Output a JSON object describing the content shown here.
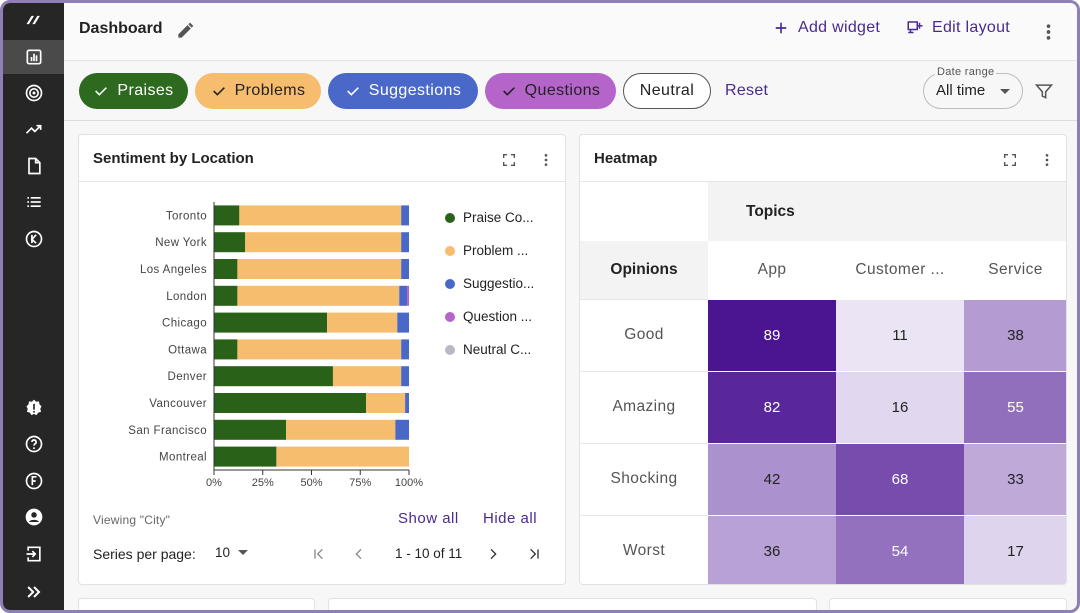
{
  "header": {
    "title": "Dashboard",
    "add_widget_label": "Add widget",
    "edit_layout_label": "Edit layout"
  },
  "sidebar": {
    "items": [
      {
        "icon": "logo-icon"
      },
      {
        "icon": "bar-chart-icon",
        "active": true
      },
      {
        "icon": "target-icon"
      },
      {
        "icon": "trending-up-icon"
      },
      {
        "icon": "document-icon"
      },
      {
        "icon": "list-icon"
      },
      {
        "icon": "k-circle-icon"
      },
      {
        "icon": "alert-badge-icon"
      },
      {
        "icon": "help-icon"
      },
      {
        "icon": "f-circle-icon"
      },
      {
        "icon": "account-icon"
      },
      {
        "icon": "login-icon"
      },
      {
        "icon": "expand-icon"
      }
    ]
  },
  "filters": {
    "chips": [
      {
        "label": "Praises",
        "selected": true,
        "color": "#2d6a1f"
      },
      {
        "label": "Problems",
        "selected": true,
        "color": "#f6bd6e"
      },
      {
        "label": "Suggestions",
        "selected": true,
        "color": "#4a68c8"
      },
      {
        "label": "Questions",
        "selected": true,
        "color": "#b565c9"
      },
      {
        "label": "Neutral",
        "selected": false,
        "color": "#ffffff"
      }
    ],
    "reset_label": "Reset",
    "date_range_label": "Date range",
    "date_range_value": "All time"
  },
  "sentiment_card": {
    "title": "Sentiment by Location",
    "legend": [
      {
        "label": "Praise Co...",
        "color": "#2a6118"
      },
      {
        "label": "Problem ...",
        "color": "#f6bd6e"
      },
      {
        "label": "Suggestio...",
        "color": "#4a68c8"
      },
      {
        "label": "Question ...",
        "color": "#b565c9"
      },
      {
        "label": "Neutral C...",
        "color": "#b9b9c6"
      }
    ],
    "viewing_text": "Viewing \"City\"",
    "show_all_label": "Show all",
    "hide_all_label": "Hide all",
    "series_per_page_label": "Series per page:",
    "series_per_page_value": "10",
    "page_range": "1 - 10 of 11"
  },
  "chart_data": {
    "type": "bar",
    "orientation": "horizontal",
    "stacked": "percent",
    "categories": [
      "Toronto",
      "New York",
      "Los Angeles",
      "London",
      "Chicago",
      "Ottawa",
      "Denver",
      "Vancouver",
      "San Francisco",
      "Montreal"
    ],
    "series": [
      {
        "name": "Praise Co...",
        "color": "#2a6118",
        "values": [
          13,
          16,
          12,
          12,
          58,
          12,
          61,
          78,
          37,
          32
        ]
      },
      {
        "name": "Problem ...",
        "color": "#f6bd6e",
        "values": [
          83,
          80,
          84,
          83,
          36,
          84,
          35,
          20,
          56,
          68
        ]
      },
      {
        "name": "Suggestio...",
        "color": "#4a68c8",
        "values": [
          4,
          4,
          4,
          4,
          6,
          4,
          4,
          2,
          7,
          0
        ]
      },
      {
        "name": "Question ...",
        "color": "#b565c9",
        "values": [
          0,
          0,
          0,
          1,
          0,
          0,
          0,
          0,
          0,
          0
        ]
      },
      {
        "name": "Neutral C...",
        "color": "#b9b9c6",
        "values": [
          0,
          0,
          0,
          0,
          0,
          0,
          0,
          0,
          0,
          0
        ]
      }
    ],
    "xticks": [
      "0%",
      "25%",
      "50%",
      "75%",
      "100%"
    ],
    "xlim": [
      0,
      100
    ],
    "grid": false,
    "legend_position": "right"
  },
  "heatmap_card": {
    "title": "Heatmap",
    "topics_label": "Topics",
    "opinions_label": "Opinions",
    "columns": [
      "App",
      "Customer ...",
      "Service"
    ],
    "rows": [
      {
        "label": "Good",
        "values": [
          89,
          11,
          38
        ]
      },
      {
        "label": "Amazing",
        "values": [
          82,
          16,
          55
        ]
      },
      {
        "label": "Shocking",
        "values": [
          42,
          68,
          33
        ]
      },
      {
        "label": "Worst",
        "values": [
          36,
          54,
          17
        ]
      }
    ]
  }
}
